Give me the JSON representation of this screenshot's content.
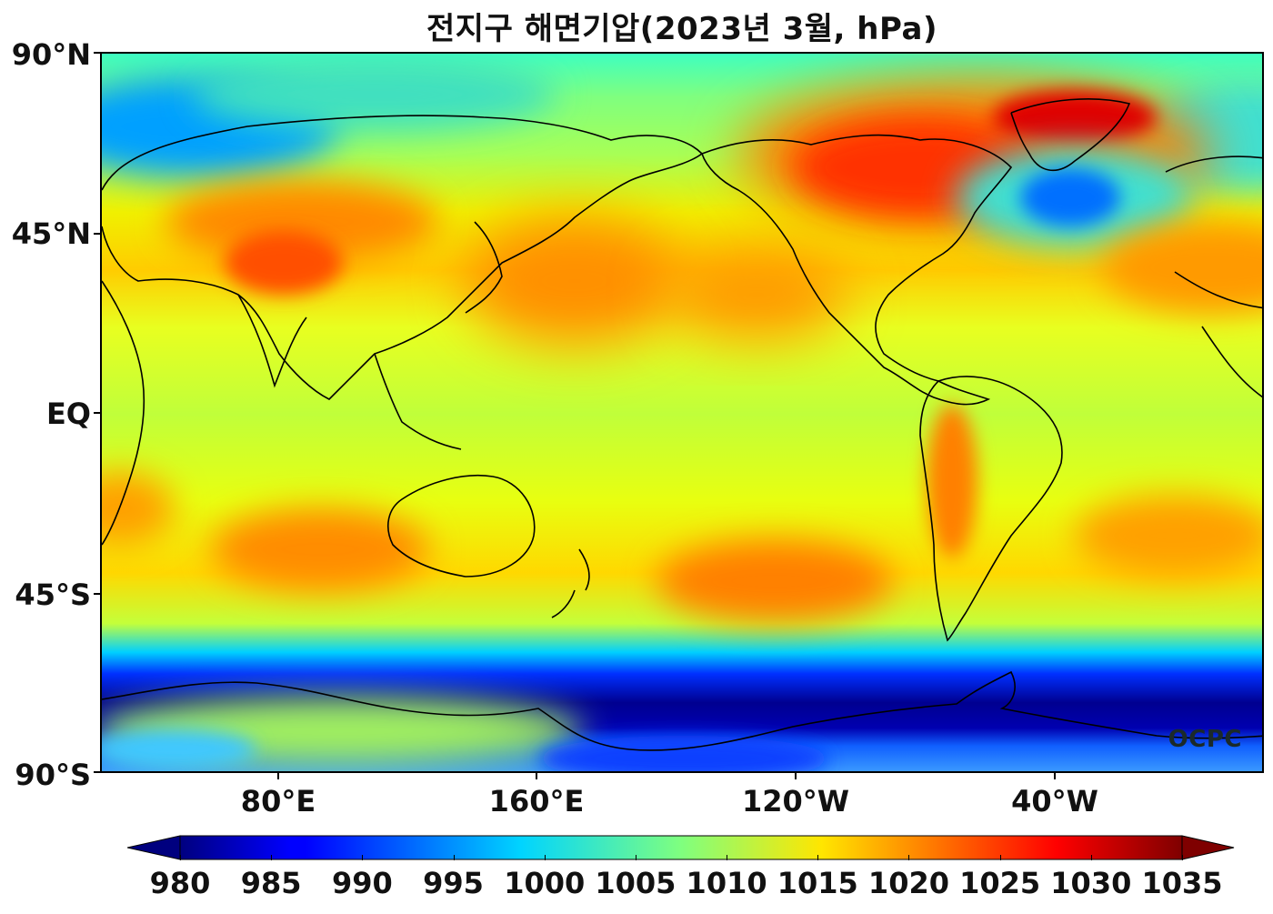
{
  "title": "전지구 해면기압(2023년 3월, hPa)",
  "watermark": "OCPC",
  "lat_labels": [
    "90°N",
    "45°N",
    "EQ",
    "45°S",
    "90°S"
  ],
  "lon_labels": [
    "80°E",
    "160°E",
    "120°W",
    "40°W"
  ],
  "colorbar": {
    "min": 980,
    "max": 1035,
    "extend": "both",
    "colormap": "jet",
    "tick_labels": [
      "980",
      "985",
      "990",
      "995",
      "1000",
      "1005",
      "1010",
      "1015",
      "1020",
      "1025",
      "1030",
      "1035"
    ]
  },
  "colors": {
    "low": "#00007f",
    "mid": "#7fff7f",
    "high": "#7f0000"
  }
}
